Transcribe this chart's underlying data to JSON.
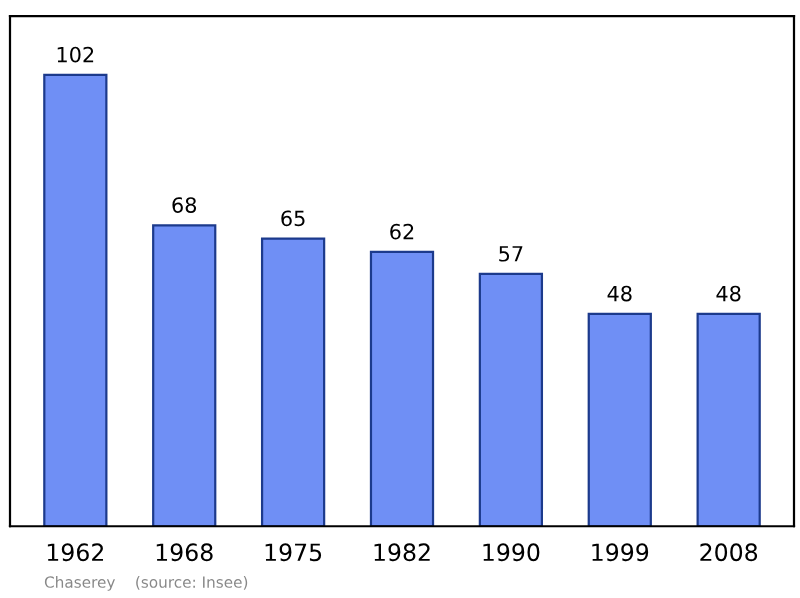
{
  "chart_data": {
    "type": "bar",
    "categories": [
      "1962",
      "1968",
      "1975",
      "1982",
      "1990",
      "1999",
      "2008"
    ],
    "values": [
      102,
      68,
      65,
      62,
      57,
      48,
      48
    ],
    "color": "#6f8ff5",
    "data_labels": true,
    "grid": false,
    "tick_labels": "x",
    "annotations": [
      "Chaserey    (source: Insee)"
    ]
  }
}
